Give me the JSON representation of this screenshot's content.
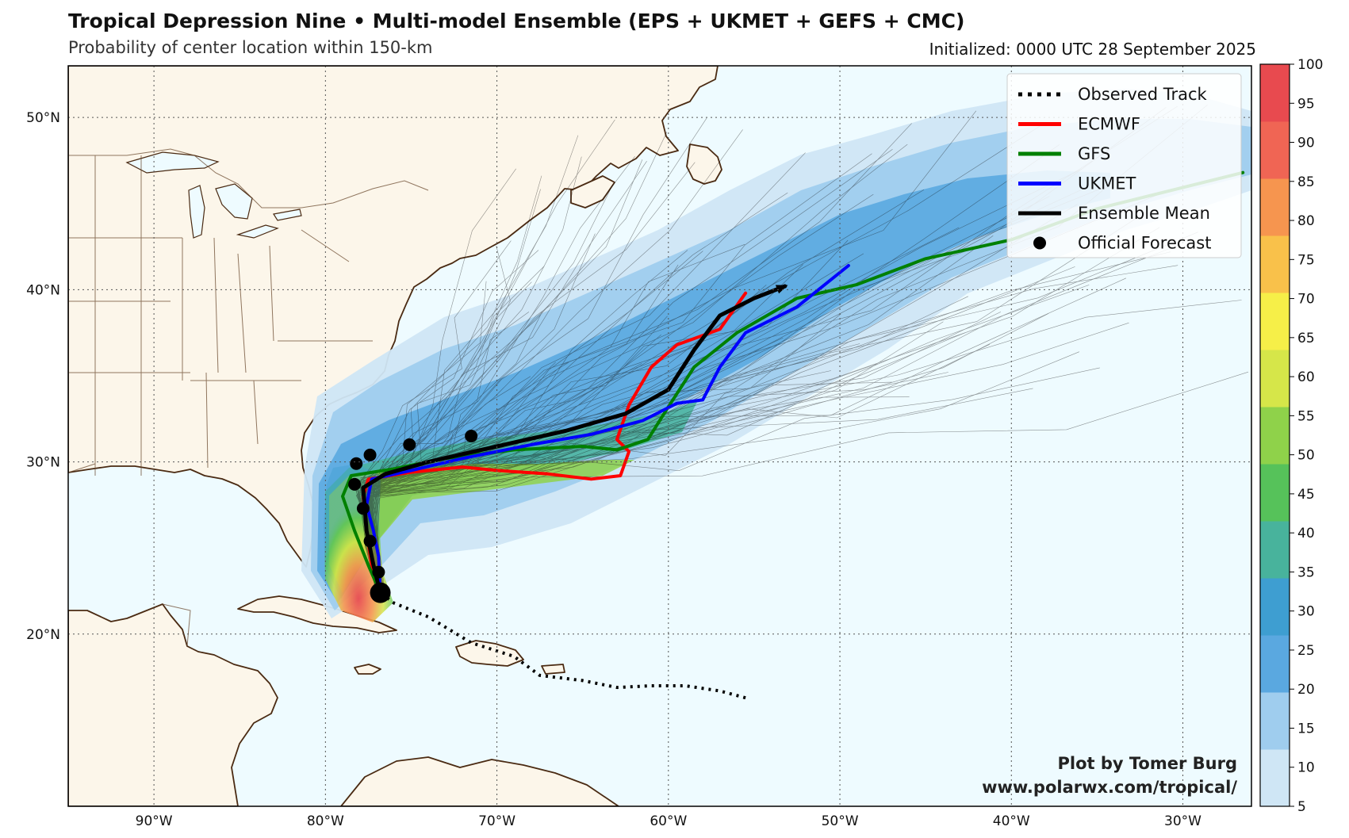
{
  "title": "Tropical Depression Nine • Multi-model Ensemble (EPS + UKMET + GEFS + CMC)",
  "subtitle": "Probability of center location within 150-km",
  "initialized": "Initialized: 0000 UTC 28 September 2025",
  "credit": {
    "line1": "Plot by Tomer Burg",
    "line2": "www.polarwx.com/tropical/"
  },
  "map": {
    "lon_range": [
      -95,
      -26
    ],
    "lat_range": [
      10,
      53
    ],
    "lat_ticks": [
      {
        "value": 20,
        "label": "20°N"
      },
      {
        "value": 30,
        "label": "30°N"
      },
      {
        "value": 40,
        "label": "40°N"
      },
      {
        "value": 50,
        "label": "50°N"
      }
    ],
    "lon_ticks": [
      {
        "value": -90,
        "label": "90°W"
      },
      {
        "value": -80,
        "label": "80°W"
      },
      {
        "value": -70,
        "label": "70°W"
      },
      {
        "value": -60,
        "label": "60°W"
      },
      {
        "value": -50,
        "label": "50°W"
      },
      {
        "value": -40,
        "label": "40°W"
      },
      {
        "value": -30,
        "label": "30°W"
      }
    ],
    "colors": {
      "ocean": "#eefbff",
      "land": "#fcf6ea",
      "coast": "#4a2a12",
      "border": "#6b4a2f",
      "grid": "#555555"
    }
  },
  "legend": [
    {
      "label": "Observed Track",
      "color": "#000000",
      "style": "dotted"
    },
    {
      "label": "ECMWF",
      "color": "#ff0000",
      "style": "solid"
    },
    {
      "label": "GFS",
      "color": "#008000",
      "style": "solid"
    },
    {
      "label": "UKMET",
      "color": "#0000ff",
      "style": "solid"
    },
    {
      "label": "Ensemble Mean",
      "color": "#000000",
      "style": "solid"
    },
    {
      "label": "Official Forecast",
      "color": "#000000",
      "style": "dot"
    }
  ],
  "tracks": {
    "observed": [
      [
        -55.5,
        16.3
      ],
      [
        -57,
        16.7
      ],
      [
        -59,
        17
      ],
      [
        -61,
        17
      ],
      [
        -63,
        16.9
      ],
      [
        -65,
        17.3
      ],
      [
        -67.5,
        17.6
      ],
      [
        -69,
        18.7
      ],
      [
        -71.5,
        19.5
      ],
      [
        -74,
        21
      ],
      [
        -76,
        21.8
      ],
      [
        -76.8,
        22.4
      ]
    ],
    "ecmwf": [
      [
        -76.8,
        22.4
      ],
      [
        -77.3,
        24
      ],
      [
        -77.6,
        26
      ],
      [
        -77.8,
        28
      ],
      [
        -77.5,
        29
      ],
      [
        -75,
        29.4
      ],
      [
        -72,
        29.7
      ],
      [
        -70,
        29.5
      ],
      [
        -67,
        29.3
      ],
      [
        -64.5,
        29
      ],
      [
        -62.8,
        29.2
      ],
      [
        -62.3,
        30.6
      ],
      [
        -63,
        31.3
      ],
      [
        -62.3,
        33.3
      ],
      [
        -61,
        35.5
      ],
      [
        -59.5,
        36.8
      ],
      [
        -57,
        37.7
      ],
      [
        -55.5,
        39.8
      ]
    ],
    "gfs": [
      [
        -76.8,
        22.4
      ],
      [
        -77.5,
        24
      ],
      [
        -78.3,
        26
      ],
      [
        -79,
        28
      ],
      [
        -78.5,
        29.2
      ],
      [
        -76,
        29.6
      ],
      [
        -73,
        30.2
      ],
      [
        -69,
        30.7
      ],
      [
        -65,
        30.9
      ],
      [
        -63,
        30.7
      ],
      [
        -61.2,
        31.3
      ],
      [
        -60,
        33.2
      ],
      [
        -58.5,
        35.5
      ],
      [
        -56,
        37.5
      ],
      [
        -52.5,
        39.5
      ],
      [
        -49,
        40.3
      ],
      [
        -45,
        41.8
      ],
      [
        -40,
        42.9
      ],
      [
        -35,
        44.7
      ],
      [
        -26.5,
        46.8
      ]
    ],
    "ukmet": [
      [
        -76.8,
        22.4
      ],
      [
        -76.9,
        24.5
      ],
      [
        -77.2,
        26
      ],
      [
        -77.6,
        27.5
      ],
      [
        -77.3,
        29
      ],
      [
        -75,
        29.5
      ],
      [
        -72,
        30.2
      ],
      [
        -68,
        31
      ],
      [
        -64.5,
        31.6
      ],
      [
        -61.5,
        32.4
      ],
      [
        -59.5,
        33.4
      ],
      [
        -58,
        33.6
      ],
      [
        -57,
        35.5
      ],
      [
        -55.5,
        37.5
      ],
      [
        -52.5,
        39
      ],
      [
        -49.5,
        41.4
      ]
    ],
    "ensemble_mean": [
      [
        -76.8,
        22.4
      ],
      [
        -77.2,
        24
      ],
      [
        -77.6,
        26
      ],
      [
        -77.8,
        28.5
      ],
      [
        -76.5,
        29.3
      ],
      [
        -74,
        30
      ],
      [
        -70,
        30.9
      ],
      [
        -66,
        31.8
      ],
      [
        -62.5,
        32.8
      ],
      [
        -60,
        34.2
      ],
      [
        -58.5,
        36.5
      ],
      [
        -57,
        38.5
      ],
      [
        -55,
        39.5
      ],
      [
        -53.2,
        40.2
      ]
    ],
    "official_forecast": [
      [
        -76.8,
        22.4
      ],
      [
        -76.9,
        23.6
      ],
      [
        -77.4,
        25.4
      ],
      [
        -77.8,
        27.3
      ],
      [
        -78.3,
        28.7
      ],
      [
        -78.2,
        29.9
      ],
      [
        -77.4,
        30.4
      ],
      [
        -75.1,
        31
      ],
      [
        -71.5,
        31.5
      ]
    ]
  },
  "colorbar": {
    "ticks": [
      5,
      10,
      15,
      20,
      25,
      30,
      35,
      40,
      45,
      50,
      55,
      60,
      65,
      70,
      75,
      80,
      85,
      90,
      95,
      100
    ],
    "colors": [
      "#cfe6f5",
      "#9fcdee",
      "#5aa8e0",
      "#3e9ed1",
      "#48b39c",
      "#56c25a",
      "#8fd24a",
      "#d6e649",
      "#f6ef48",
      "#f9c14a",
      "#f6954f",
      "#f06554",
      "#e84a4f"
    ]
  }
}
